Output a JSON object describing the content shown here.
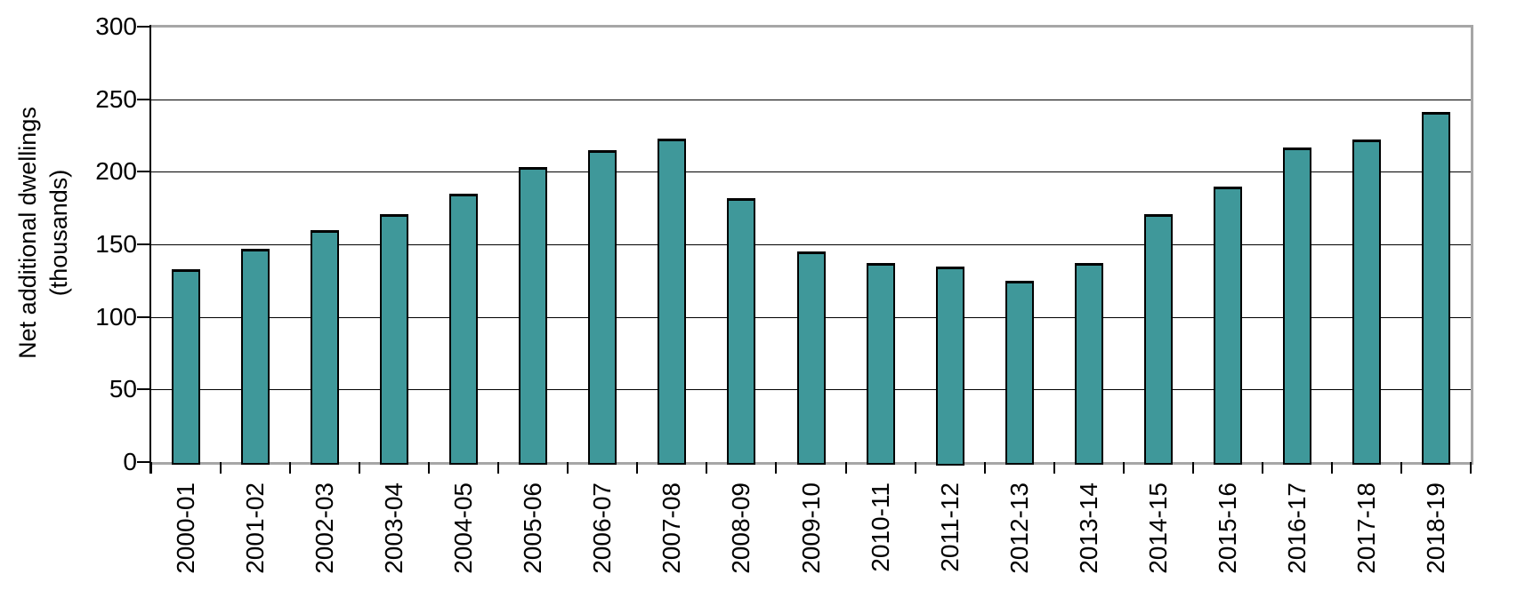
{
  "chart_data": {
    "type": "bar",
    "title": "",
    "ylabel": "Net additional dwellings (thousands)",
    "ylabel_line1": "Net additional dwellings",
    "ylabel_line2": "(thousands)",
    "xlabel": "",
    "categories": [
      "2000-01",
      "2001-02",
      "2002-03",
      "2003-04",
      "2004-05",
      "2005-06",
      "2006-07",
      "2007-08",
      "2008-09",
      "2009-10",
      "2010-11",
      "2011-12",
      "2012-13",
      "2013-14",
      "2014-15",
      "2015-16",
      "2016-17",
      "2017-18",
      "2018-19"
    ],
    "values": [
      133,
      147,
      160,
      171,
      185,
      203,
      215,
      223,
      182,
      145,
      137,
      135,
      125,
      137,
      171,
      190,
      217,
      222,
      241
    ],
    "ylim": [
      0,
      300
    ],
    "yticks": [
      0,
      50,
      100,
      150,
      200,
      250,
      300
    ],
    "grid": "horizontal",
    "legend": "none",
    "bar_color": "#3F989A",
    "bar_border_color": "#000000",
    "grid_color": "#000000",
    "frame_color": "#a6a6a6",
    "text_color": "#000000",
    "background_color": "#ffffff"
  }
}
